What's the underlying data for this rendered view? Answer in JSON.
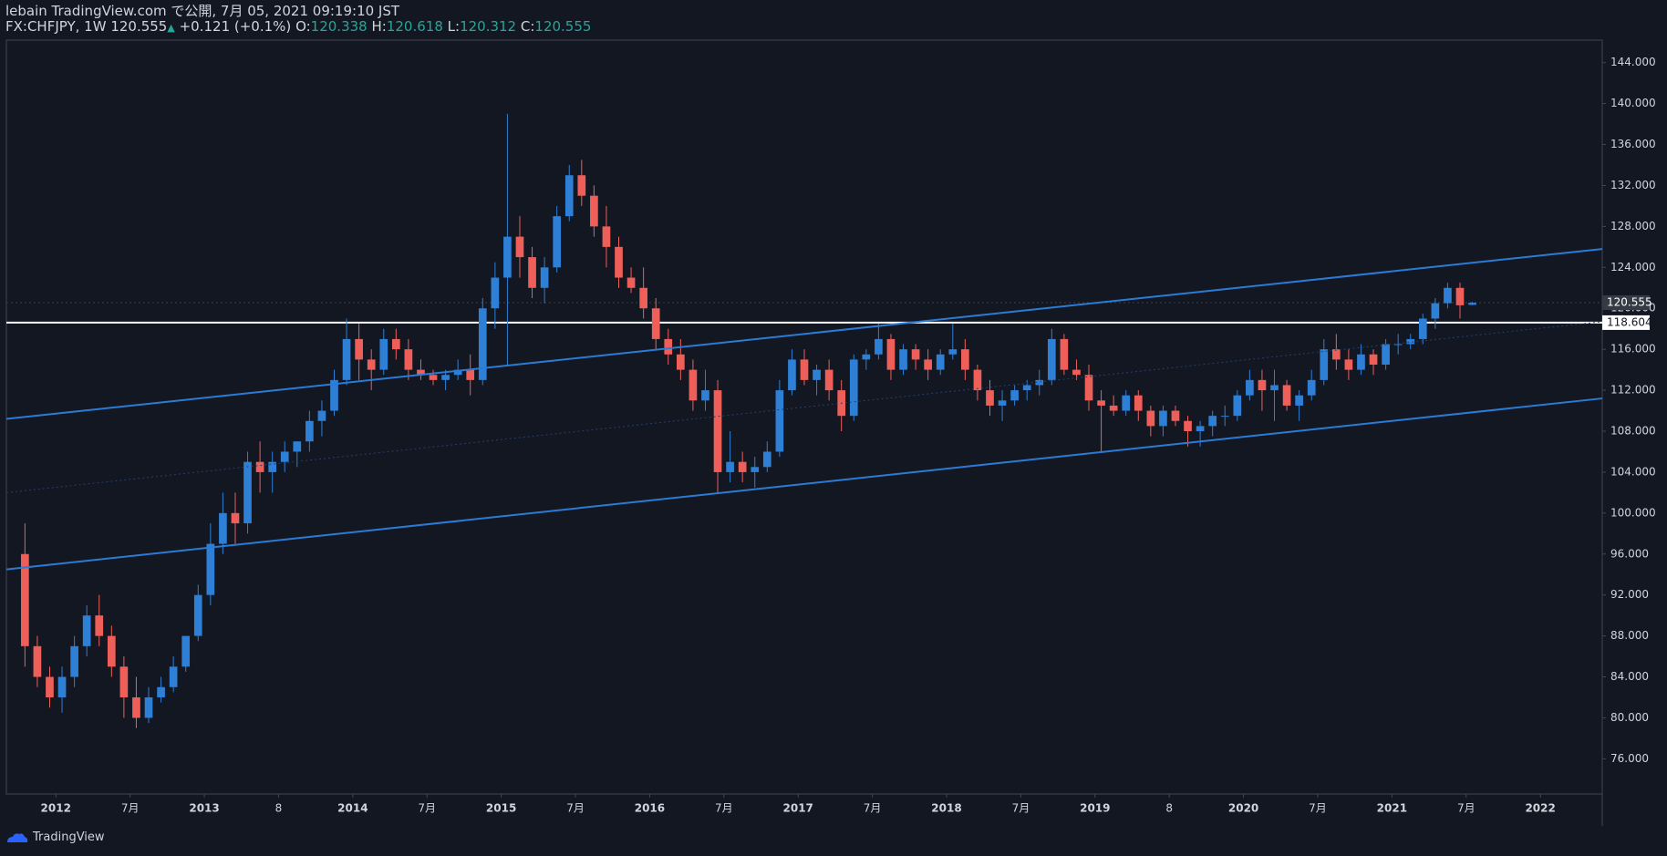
{
  "header": {
    "line1": "lebain TradingView.com で公開, 7月 05, 2021 09:19:10 JST",
    "symbol": "FX:CHFJPY, 1W 120.555",
    "arrow": "▲",
    "change": "+0.121 (+0.1%)",
    "o_label": "O:",
    "o": "120.338",
    "h_label": "H:",
    "h": "120.618",
    "l_label": "L:",
    "l": "120.312",
    "c_label": "C:",
    "c": "120.555"
  },
  "footer": {
    "brand": "TradingView"
  },
  "chart_data": {
    "type": "candlestick",
    "up_color": "#2e7fd6",
    "down_color": "#ef5f5a",
    "x": [
      "2011-10",
      "2011-11",
      "2011-12",
      "2012-01",
      "2012-02",
      "2012-03",
      "2012-04",
      "2012-05",
      "2012-06",
      "2012-07",
      "2012-08",
      "2012-09",
      "2012-10",
      "2012-11",
      "2012-12",
      "2013-01",
      "2013-02",
      "2013-03",
      "2013-04",
      "2013-05",
      "2013-06",
      "2013-07",
      "2013-08",
      "2013-09",
      "2013-10",
      "2013-11",
      "2013-12",
      "2014-01",
      "2014-02",
      "2014-03",
      "2014-04",
      "2014-05",
      "2014-06",
      "2014-07",
      "2014-08",
      "2014-09",
      "2014-10",
      "2014-11",
      "2014-12",
      "2015-01",
      "2015-02",
      "2015-03",
      "2015-04",
      "2015-05",
      "2015-06",
      "2015-07",
      "2015-08",
      "2015-09",
      "2015-10",
      "2015-11",
      "2015-12",
      "2016-01",
      "2016-02",
      "2016-03",
      "2016-04",
      "2016-05",
      "2016-06",
      "2016-07",
      "2016-08",
      "2016-09",
      "2016-10",
      "2016-11",
      "2016-12",
      "2017-01",
      "2017-02",
      "2017-03",
      "2017-04",
      "2017-05",
      "2017-06",
      "2017-07",
      "2017-08",
      "2017-09",
      "2017-10",
      "2017-11",
      "2017-12",
      "2018-01",
      "2018-02",
      "2018-03",
      "2018-04",
      "2018-05",
      "2018-06",
      "2018-07",
      "2018-08",
      "2018-09",
      "2018-10",
      "2018-11",
      "2018-12",
      "2019-01",
      "2019-02",
      "2019-03",
      "2019-04",
      "2019-05",
      "2019-06",
      "2019-07",
      "2019-08",
      "2019-09",
      "2019-10",
      "2019-11",
      "2019-12",
      "2020-01",
      "2020-02",
      "2020-03",
      "2020-04",
      "2020-05",
      "2020-06",
      "2020-07",
      "2020-08",
      "2020-09",
      "2020-10",
      "2020-11",
      "2020-12",
      "2021-01",
      "2021-02",
      "2021-03",
      "2021-04",
      "2021-05",
      "2021-06",
      "2021-07"
    ],
    "open": [
      96,
      87,
      84,
      82,
      84,
      87,
      90,
      88,
      85,
      82,
      80,
      82,
      83,
      85,
      88,
      92,
      97,
      100,
      99,
      105,
      104,
      105,
      106,
      107,
      109,
      110,
      113,
      117,
      115,
      114,
      117,
      116,
      114,
      113.5,
      113,
      113.5,
      114,
      113,
      120,
      123,
      127,
      125,
      122,
      124,
      129,
      133,
      131,
      128,
      126,
      123,
      122,
      120,
      117,
      115.5,
      114,
      111,
      112,
      104,
      105,
      104,
      104.5,
      106,
      112,
      115,
      113,
      114,
      112,
      109.5,
      115,
      115.5,
      117,
      114,
      116,
      115,
      114,
      115.5,
      116,
      114,
      112,
      110.5,
      111,
      112,
      112.5,
      113,
      117,
      114,
      113.5,
      111,
      110.5,
      110,
      111.5,
      110,
      108.5,
      110,
      109,
      108,
      108.5,
      109.5,
      109.5,
      111.5,
      113,
      112,
      112.5,
      110.5,
      111.5,
      113,
      116,
      115,
      114,
      115.5,
      114.5,
      116.5,
      116.5,
      117,
      119,
      120.5,
      122,
      120.338
    ],
    "high": [
      99,
      88,
      85,
      85,
      88,
      91,
      92,
      89,
      86,
      84,
      83,
      84,
      86,
      88,
      93,
      99,
      102,
      102,
      106,
      107,
      106,
      107,
      107,
      110,
      111,
      114,
      119,
      118.5,
      116,
      118,
      118,
      117,
      115,
      114,
      114,
      115,
      115.5,
      121,
      124.5,
      139,
      129,
      126,
      125,
      130,
      134,
      134.5,
      132,
      130,
      127,
      124,
      124,
      121,
      118,
      117,
      115,
      114,
      113,
      108,
      106,
      105.5,
      107,
      113,
      116,
      116,
      114.5,
      115,
      113,
      115.5,
      116,
      118.5,
      117.5,
      116.5,
      116.5,
      116,
      116,
      118.5,
      117,
      114.5,
      113,
      112,
      112.5,
      113,
      114,
      118,
      117.5,
      115,
      114.5,
      112,
      111.5,
      112,
      112,
      110.5,
      110.5,
      110.5,
      109.5,
      109,
      110,
      110.5,
      112,
      114,
      114,
      114,
      113,
      112,
      114,
      117,
      117.5,
      116,
      116.5,
      116,
      117,
      117.5,
      117.5,
      119.5,
      121,
      122.5,
      122.5,
      120.618
    ],
    "low": [
      85,
      83,
      81,
      80.5,
      83,
      86,
      87,
      84,
      80,
      79,
      79.5,
      81.5,
      82.5,
      84.5,
      87.5,
      91,
      96,
      97,
      98,
      102,
      102,
      104,
      104.5,
      106,
      107.5,
      109.5,
      112.5,
      113,
      112,
      113.5,
      115,
      113,
      113,
      112.5,
      112,
      113,
      111.5,
      112.5,
      118,
      114.5,
      123,
      121,
      120.5,
      123.5,
      128.5,
      130,
      127,
      124,
      122,
      121.5,
      119,
      116,
      114.5,
      113,
      110,
      110,
      102,
      103,
      103,
      102.5,
      104,
      105.5,
      111.5,
      112.5,
      111.5,
      111,
      108,
      109,
      114,
      115,
      113,
      113.5,
      114,
      113,
      113.5,
      115,
      113,
      111,
      109.5,
      109,
      110.5,
      111,
      111.5,
      112.5,
      113.5,
      113,
      110,
      106,
      109.5,
      109.5,
      109,
      107.5,
      107.5,
      108.5,
      106.5,
      106.5,
      107.5,
      108.5,
      109,
      111,
      110,
      109,
      110,
      109,
      111,
      112.5,
      114,
      113,
      113.5,
      113.5,
      114,
      115.5,
      116,
      116.5,
      118,
      120,
      119,
      120.312
    ],
    "close": [
      87,
      84,
      82,
      84,
      87,
      90,
      88,
      85,
      82,
      80,
      82,
      83,
      85,
      88,
      92,
      97,
      100,
      99,
      105,
      104,
      105,
      106,
      107,
      109,
      110,
      113,
      117,
      115,
      114,
      117,
      116,
      114,
      113.5,
      113,
      113.5,
      114,
      113,
      120,
      123,
      127,
      125,
      122,
      124,
      129,
      133,
      131,
      128,
      126,
      123,
      122,
      120,
      117,
      115.5,
      114,
      111,
      112,
      104,
      105,
      104,
      104.5,
      106,
      112,
      115,
      113,
      114,
      112,
      109.5,
      115,
      115.5,
      117,
      114,
      116,
      115,
      114,
      115.5,
      116,
      114,
      112,
      110.5,
      111,
      112,
      112.5,
      113,
      117,
      114,
      113.5,
      111,
      110.5,
      110,
      111.5,
      110,
      108.5,
      110,
      109,
      108,
      108.5,
      109.5,
      109.5,
      111.5,
      113,
      112,
      112.5,
      110.5,
      111.5,
      113,
      116,
      115,
      114,
      115.5,
      114.5,
      116.5,
      116.5,
      117,
      119,
      120.5,
      122,
      120.3,
      120.555
    ],
    "xlim": [
      "2011-09",
      "2022-06"
    ],
    "xticks": [
      {
        "value": "2012-01",
        "label": "2012"
      },
      {
        "value": "2012-07",
        "label": "7月"
      },
      {
        "value": "2013-01",
        "label": "2013"
      },
      {
        "value": "2013-07",
        "label": "8"
      },
      {
        "value": "2014-01",
        "label": "2014"
      },
      {
        "value": "2014-07",
        "label": "7月"
      },
      {
        "value": "2015-01",
        "label": "2015"
      },
      {
        "value": "2015-07",
        "label": "7月"
      },
      {
        "value": "2016-01",
        "label": "2016"
      },
      {
        "value": "2016-07",
        "label": "7月"
      },
      {
        "value": "2017-01",
        "label": "2017"
      },
      {
        "value": "2017-07",
        "label": "7月"
      },
      {
        "value": "2018-01",
        "label": "2018"
      },
      {
        "value": "2018-07",
        "label": "7月"
      },
      {
        "value": "2019-01",
        "label": "2019"
      },
      {
        "value": "2019-07",
        "label": "8"
      },
      {
        "value": "2020-01",
        "label": "2020"
      },
      {
        "value": "2020-07",
        "label": "7月"
      },
      {
        "value": "2021-01",
        "label": "2021"
      },
      {
        "value": "2021-07",
        "label": "7月"
      },
      {
        "value": "2022-01",
        "label": "2022"
      }
    ],
    "ylim": [
      72.56,
      146.2
    ],
    "yticks": [
      {
        "value": 76,
        "label": "76.000"
      },
      {
        "value": 80,
        "label": "80.000"
      },
      {
        "value": 84,
        "label": "84.000"
      },
      {
        "value": 88,
        "label": "88.000"
      },
      {
        "value": 92,
        "label": "92.000"
      },
      {
        "value": 96,
        "label": "96.000"
      },
      {
        "value": 100,
        "label": "100.000"
      },
      {
        "value": 104,
        "label": "104.000"
      },
      {
        "value": 108,
        "label": "108.000"
      },
      {
        "value": 112,
        "label": "112.000"
      },
      {
        "value": 116,
        "label": "116.000"
      },
      {
        "value": 120,
        "label": "120.000"
      },
      {
        "value": 124,
        "label": "124.000"
      },
      {
        "value": 128,
        "label": "128.000"
      },
      {
        "value": 132,
        "label": "132.000"
      },
      {
        "value": 136,
        "label": "136.000"
      },
      {
        "value": 140,
        "label": "140.000"
      },
      {
        "value": 144,
        "label": "144.000"
      }
    ],
    "grid": false,
    "trendlines": [
      {
        "start": [
          "2011-09",
          109.2
        ],
        "end": [
          "2022-06",
          125.8
        ],
        "color": "#2b7bd6",
        "style": "solid"
      },
      {
        "start": [
          "2011-09",
          102.0
        ],
        "end": [
          "2022-06",
          118.7
        ],
        "color": "#23406e",
        "style": "dotted"
      },
      {
        "start": [
          "2011-09",
          94.5
        ],
        "end": [
          "2022-06",
          111.2
        ],
        "color": "#2b7bd6",
        "style": "solid"
      }
    ],
    "hlines": [
      {
        "value": 118.604,
        "color": "#ffffff",
        "style": "solid",
        "label_bg": "#ffffff",
        "label_color": "#131722"
      },
      {
        "value": 120.555,
        "color": "#3a3f4c",
        "style": "dotted",
        "label_bg": "#363a45",
        "label_color": "#ffffff"
      }
    ]
  }
}
